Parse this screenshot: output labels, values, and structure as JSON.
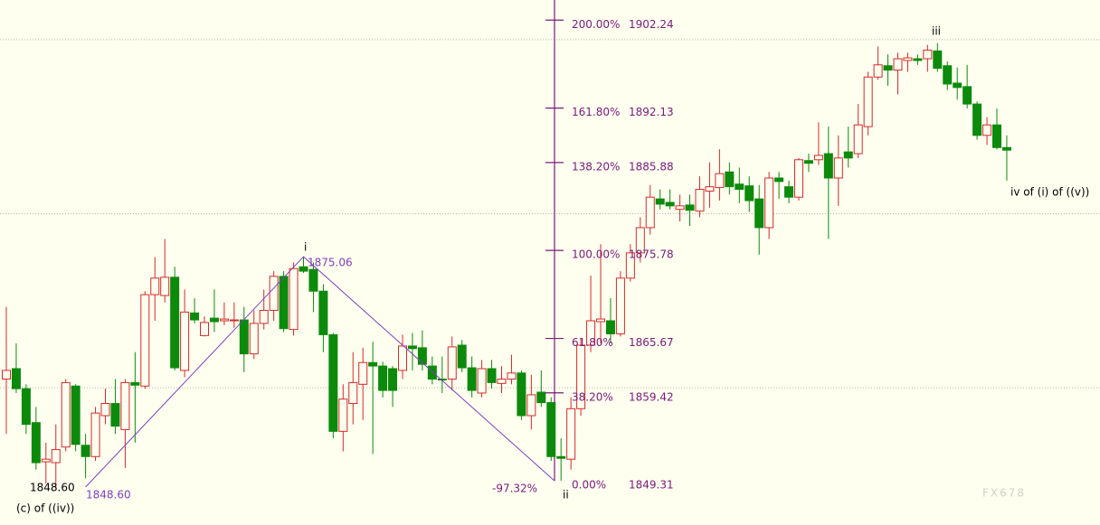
{
  "chart_data": {
    "type": "candlestick",
    "ylim": [
      1844.24,
      1904.55
    ],
    "grid_lines": [
      1860,
      1880,
      1900
    ],
    "up_color": "#d42a2a",
    "down_color": "#0c8a0c",
    "open": [
      1861.0,
      1862.2,
      1859.9,
      1856.0,
      1851.5,
      1851.4,
      1853.2,
      1860.2,
      1853.4,
      1852.1,
      1856.8,
      1858.2,
      1855.2,
      1860.6,
      1860.2,
      1870.7,
      1870.6,
      1872.7,
      1862.0,
      1868.6,
      1866.0,
      1868.0,
      1867.7,
      1867.7,
      1867.8,
      1863.9,
      1867.4,
      1868.9,
      1872.8,
      1866.7,
      1873.9,
      1873.6,
      1871.1,
      1866.1,
      1855.0,
      1858.2,
      1860.4,
      1862.9,
      1862.5,
      1862.2,
      1862.0,
      1864.8,
      1864.6,
      1862.5,
      1861.0,
      1861.0,
      1864.9,
      1862.3,
      1859.4,
      1862.2,
      1860.5,
      1861.0,
      1861.7,
      1856.8,
      1859.5,
      1858.3,
      1852.1,
      1851.8,
      1857.6,
      1864.9,
      1867.6,
      1867.7,
      1866.2,
      1872.6,
      1875.5,
      1878.4,
      1881.7,
      1881.3,
      1880.5,
      1881.0,
      1880.3,
      1882.6,
      1883.0,
      1884.8,
      1883.4,
      1883.2,
      1881.7,
      1878.4,
      1884.1,
      1883.1,
      1881.9,
      1886.1,
      1886.2,
      1886.9,
      1884.1,
      1887.1,
      1886.9,
      1890.0,
      1895.7,
      1897.0,
      1896.5,
      1897.6,
      1897.8,
      1897.8,
      1898.7,
      1897.0,
      1895.0,
      1894.6,
      1892.6,
      1889.0,
      1890.2,
      1887.6
    ],
    "high": [
      1869.3,
      1865.1,
      1860.4,
      1857.8,
      1853.7,
      1855.8,
      1861.0,
      1860.4,
      1854.7,
      1857.8,
      1859.9,
      1861.0,
      1861.0,
      1864.1,
      1871.1,
      1875.0,
      1877.1,
      1873.9,
      1871.3,
      1870.3,
      1868.2,
      1871.3,
      1869.8,
      1869.8,
      1869.3,
      1868.9,
      1871.3,
      1873.4,
      1873.4,
      1874.4,
      1875.06,
      1874.4,
      1871.9,
      1866.3,
      1860.4,
      1864.1,
      1864.6,
      1865.3,
      1863.0,
      1862.5,
      1866.1,
      1866.3,
      1866.6,
      1863.6,
      1863.6,
      1865.9,
      1865.5,
      1863.6,
      1863.2,
      1863.2,
      1862.5,
      1863.8,
      1862.0,
      1861.5,
      1862.0,
      1858.9,
      1854.2,
      1858.9,
      1865.6,
      1872.9,
      1876.5,
      1870.3,
      1873.4,
      1876.5,
      1879.6,
      1883.3,
      1882.8,
      1882.8,
      1882.2,
      1882.2,
      1884.3,
      1885.9,
      1887.4,
      1885.9,
      1885.3,
      1884.3,
      1883.3,
      1884.8,
      1884.8,
      1883.8,
      1886.4,
      1886.9,
      1890.5,
      1890.0,
      1889.0,
      1890.0,
      1892.6,
      1896.3,
      1899.2,
      1898.3,
      1898.5,
      1898.5,
      1898.3,
      1899.4,
      1899.6,
      1897.5,
      1896.8,
      1897.1,
      1892.9,
      1891.1,
      1892.1,
      1889.0
    ],
    "low": [
      1854.7,
      1859.4,
      1854.7,
      1850.6,
      1849.0,
      1848.5,
      1852.7,
      1852.7,
      1849.6,
      1851.6,
      1855.8,
      1854.7,
      1850.8,
      1853.7,
      1859.9,
      1867.7,
      1869.8,
      1862.0,
      1861.2,
      1867.4,
      1865.9,
      1866.4,
      1867.2,
      1866.9,
      1861.8,
      1863.3,
      1866.7,
      1867.7,
      1866.4,
      1866.0,
      1873.2,
      1868.7,
      1864.1,
      1854.2,
      1852.7,
      1855.8,
      1856.3,
      1852.4,
      1858.9,
      1857.8,
      1861.0,
      1862.0,
      1862.0,
      1860.4,
      1859.4,
      1859.7,
      1861.8,
      1858.9,
      1858.9,
      1859.9,
      1859.4,
      1860.4,
      1856.3,
      1855.2,
      1857.8,
      1851.6,
      1849.31,
      1850.6,
      1856.8,
      1864.1,
      1865.1,
      1865.1,
      1865.9,
      1872.2,
      1874.4,
      1877.6,
      1880.5,
      1880.5,
      1879.1,
      1878.6,
      1879.6,
      1880.7,
      1881.5,
      1882.2,
      1881.2,
      1880.2,
      1875.3,
      1877.1,
      1881.7,
      1881.2,
      1881.5,
      1884.8,
      1885.6,
      1877.1,
      1880.9,
      1885.3,
      1886.4,
      1889.0,
      1895.4,
      1894.7,
      1893.7,
      1896.3,
      1897.1,
      1896.3,
      1896.3,
      1894.2,
      1893.1,
      1892.1,
      1888.5,
      1887.9,
      1887.4,
      1883.8
    ],
    "close": [
      1862.0,
      1859.9,
      1855.8,
      1851.4,
      1851.8,
      1852.9,
      1860.6,
      1853.5,
      1852.1,
      1857.1,
      1858.2,
      1855.6,
      1860.6,
      1860.3,
      1870.7,
      1872.6,
      1872.7,
      1862.3,
      1868.7,
      1867.8,
      1867.5,
      1867.6,
      1867.9,
      1867.8,
      1863.9,
      1867.4,
      1868.9,
      1872.8,
      1866.8,
      1873.7,
      1873.4,
      1871.1,
      1866.1,
      1855.0,
      1858.7,
      1860.6,
      1862.9,
      1862.5,
      1859.7,
      1859.7,
      1864.8,
      1864.5,
      1862.7,
      1861.0,
      1860.9,
      1864.7,
      1862.3,
      1859.7,
      1862.2,
      1860.6,
      1861.0,
      1861.7,
      1856.8,
      1859.2,
      1858.3,
      1852.1,
      1851.9,
      1857.6,
      1864.9,
      1867.7,
      1867.9,
      1866.2,
      1872.6,
      1875.5,
      1878.4,
      1881.9,
      1881.1,
      1880.9,
      1880.9,
      1880.4,
      1882.8,
      1883.1,
      1884.6,
      1883.1,
      1882.8,
      1881.5,
      1878.4,
      1884.1,
      1883.7,
      1881.9,
      1886.2,
      1885.8,
      1886.7,
      1884.1,
      1886.4,
      1886.4,
      1890.2,
      1895.7,
      1897.1,
      1896.5,
      1897.8,
      1897.9,
      1897.6,
      1898.8,
      1896.7,
      1894.9,
      1894.5,
      1892.6,
      1889.0,
      1890.2,
      1887.6,
      1887.3
    ],
    "fibonacci": {
      "color": "#7a1a7a",
      "levels": [
        {
          "ratio": {
            "value": 200,
            "label": "200.00%"
          },
          "price": 1902.24
        },
        {
          "ratio": {
            "value": 161.8,
            "label": "161.80%"
          },
          "price": 1892.13
        },
        {
          "ratio": {
            "value": 138.2,
            "label": "138.20%"
          },
          "price": 1885.88
        },
        {
          "ratio": {
            "value": 100,
            "label": "100.00%"
          },
          "price": 1875.78
        },
        {
          "ratio": {
            "value": 61.8,
            "label": "61.80%"
          },
          "price": 1865.67
        },
        {
          "ratio": {
            "value": 38.2,
            "label": "38.20%"
          },
          "price": 1859.42
        },
        {
          "ratio": {
            "value": 0,
            "label": "0.00%"
          },
          "price": 1849.31
        }
      ]
    },
    "wave": {
      "color": "#8040c0",
      "prices": [
        {
          "value": 1848.6,
          "label": "1848.60"
        },
        1875.06,
        1849.31
      ]
    },
    "annotations": {
      "start": "(c) of ((iv))",
      "wave_i": "i",
      "retracement": "-97.32%",
      "wave_ii": "ii",
      "wave_iii": "iii",
      "wave_iv": "iv of (i) of ((v))"
    },
    "watermark": "FX678"
  }
}
